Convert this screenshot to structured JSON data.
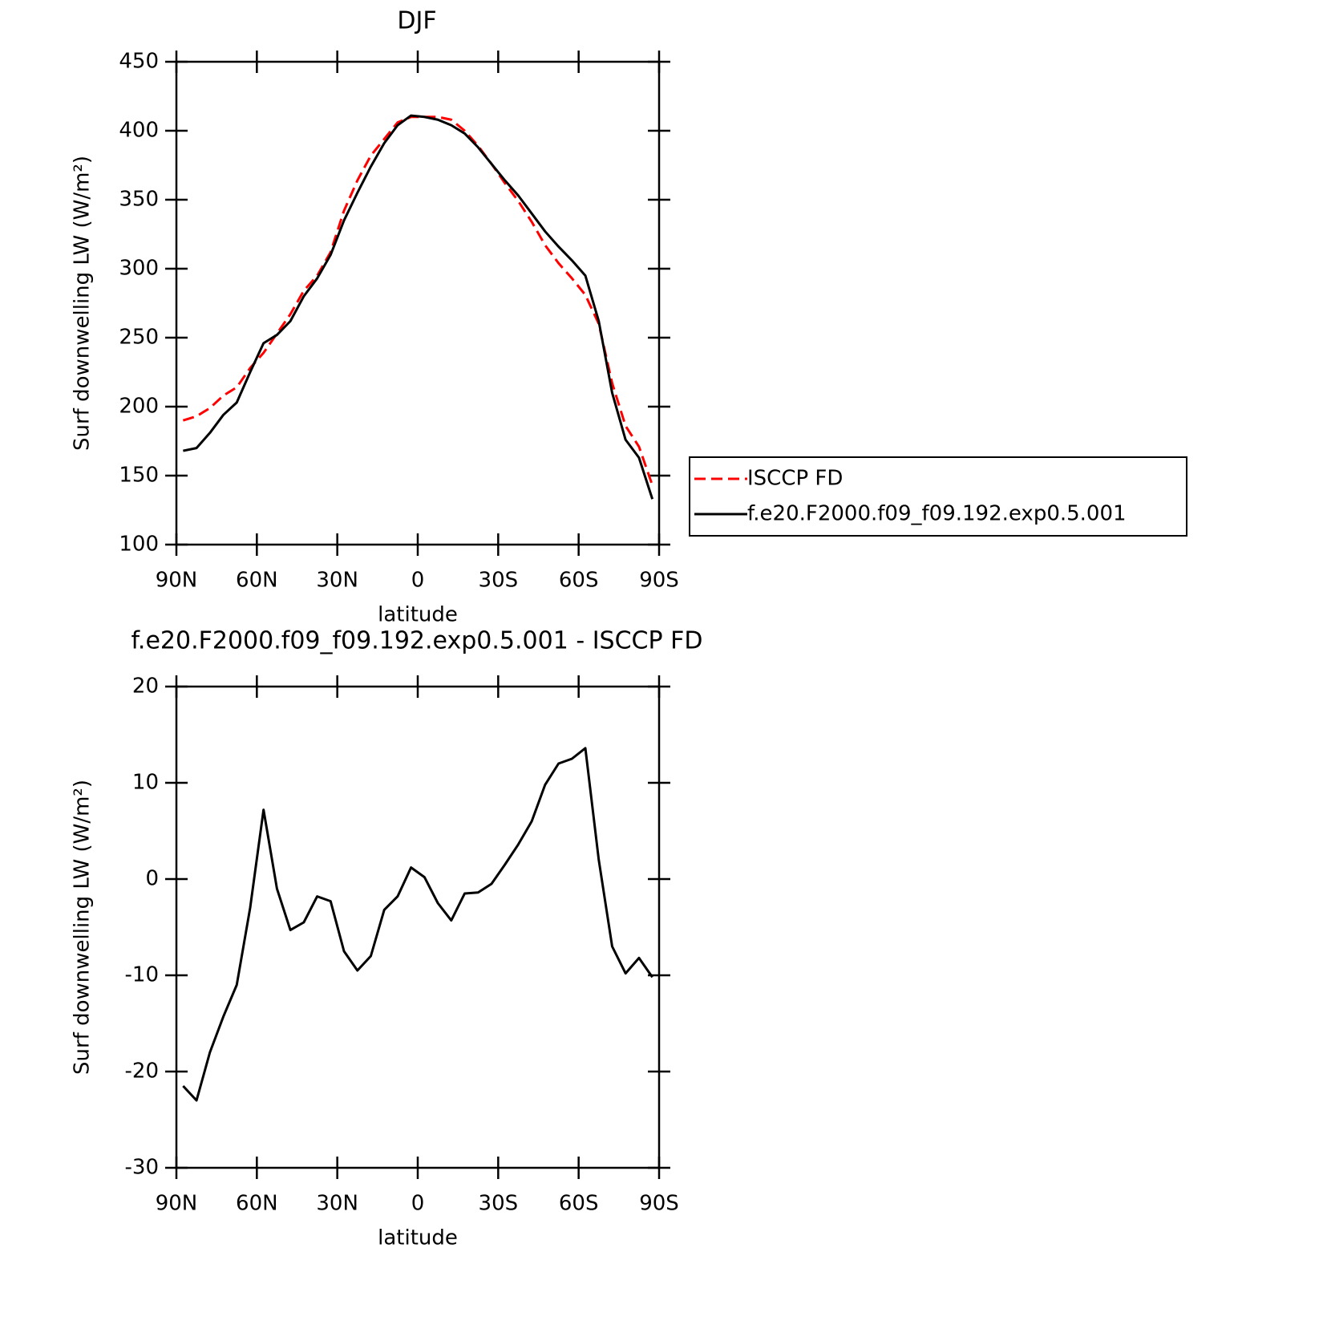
{
  "chart_data": [
    {
      "type": "line",
      "title": "DJF",
      "xlabel": "latitude",
      "ylabel": "Surf downwelling LW (W/m²)",
      "x": [
        87.5,
        82.5,
        77.5,
        72.5,
        67.5,
        62.5,
        57.5,
        52.5,
        47.5,
        42.5,
        37.5,
        32.5,
        27.5,
        22.5,
        17.5,
        12.5,
        7.5,
        2.5,
        -2.5,
        -7.5,
        -12.5,
        -17.5,
        -22.5,
        -27.5,
        -32.5,
        -37.5,
        -42.5,
        -47.5,
        -52.5,
        -57.5,
        -62.5,
        -67.5,
        -72.5,
        -77.5,
        -82.5,
        -87.5
      ],
      "series": [
        {
          "name": "ISCCP FD",
          "color": "#ff0000",
          "linestyle": "dashed",
          "values": [
            190,
            193,
            199,
            208,
            214,
            228,
            239,
            253,
            267,
            284,
            295,
            312,
            342,
            364,
            382,
            394,
            406,
            410,
            410,
            410,
            408,
            400,
            389,
            376,
            362,
            349,
            334,
            317,
            304,
            293,
            281,
            260,
            217,
            186,
            171,
            143
          ]
        },
        {
          "name": "f.e20.F2000.f09_f09.192.exp0.5.001",
          "color": "#000000",
          "linestyle": "solid",
          "values": [
            168,
            170,
            181,
            194,
            203,
            225,
            246,
            252,
            262,
            280,
            293,
            310,
            335,
            355,
            374,
            391,
            404,
            411,
            410,
            408,
            404,
            398,
            388,
            376,
            364,
            353,
            340,
            327,
            316,
            306,
            295,
            262,
            210,
            176,
            163,
            133
          ]
        }
      ],
      "xlim": [
        90,
        -90
      ],
      "xticks": [
        {
          "value": 90,
          "label": "90N"
        },
        {
          "value": 60,
          "label": "60N"
        },
        {
          "value": 30,
          "label": "30N"
        },
        0,
        {
          "value": -30,
          "label": "30S"
        },
        {
          "value": -60,
          "label": "60S"
        },
        {
          "value": -90,
          "label": "90S"
        }
      ],
      "ylim": [
        100,
        450
      ],
      "yticks": [
        100,
        150,
        200,
        250,
        300,
        350,
        400,
        450
      ],
      "legend": "right"
    },
    {
      "type": "line",
      "title": "f.e20.F2000.f09_f09.192.exp0.5.001 - ISCCP FD",
      "xlabel": "latitude",
      "ylabel": "Surf downwelling LW (W/m²)",
      "x": [
        87.5,
        82.5,
        77.5,
        72.5,
        67.5,
        62.5,
        57.5,
        52.5,
        47.5,
        42.5,
        37.5,
        32.5,
        27.5,
        22.5,
        17.5,
        12.5,
        7.5,
        2.5,
        -2.5,
        -7.5,
        -12.5,
        -17.5,
        -22.5,
        -27.5,
        -32.5,
        -37.5,
        -42.5,
        -47.5,
        -52.5,
        -57.5,
        -62.5,
        -67.5,
        -72.5,
        -77.5,
        -82.5,
        -87.5
      ],
      "series": [
        {
          "color": "#000000",
          "linestyle": "solid",
          "values": [
            -21.5,
            -23,
            -18,
            -14.3,
            -11,
            -3,
            7.2,
            -1,
            -5.3,
            -4.5,
            -1.8,
            -2.3,
            -7.5,
            -9.5,
            -8,
            -3.2,
            -1.8,
            1.2,
            0.2,
            -2.5,
            -4.3,
            -1.5,
            -1.4,
            -0.5,
            1.5,
            3.6,
            6,
            9.8,
            12,
            12.5,
            13.6,
            2,
            -7,
            -9.8,
            -8.2,
            -10.2
          ]
        }
      ],
      "xlim": [
        90,
        -90
      ],
      "xticks": [
        {
          "value": 90,
          "label": "90N"
        },
        {
          "value": 60,
          "label": "60N"
        },
        {
          "value": 30,
          "label": "30N"
        },
        0,
        {
          "value": -30,
          "label": "30S"
        },
        {
          "value": -60,
          "label": "60S"
        },
        {
          "value": -90,
          "label": "90S"
        }
      ],
      "ylim": [
        -30,
        20
      ],
      "yticks": [
        -30,
        -20,
        -10,
        0,
        10,
        20
      ]
    }
  ]
}
